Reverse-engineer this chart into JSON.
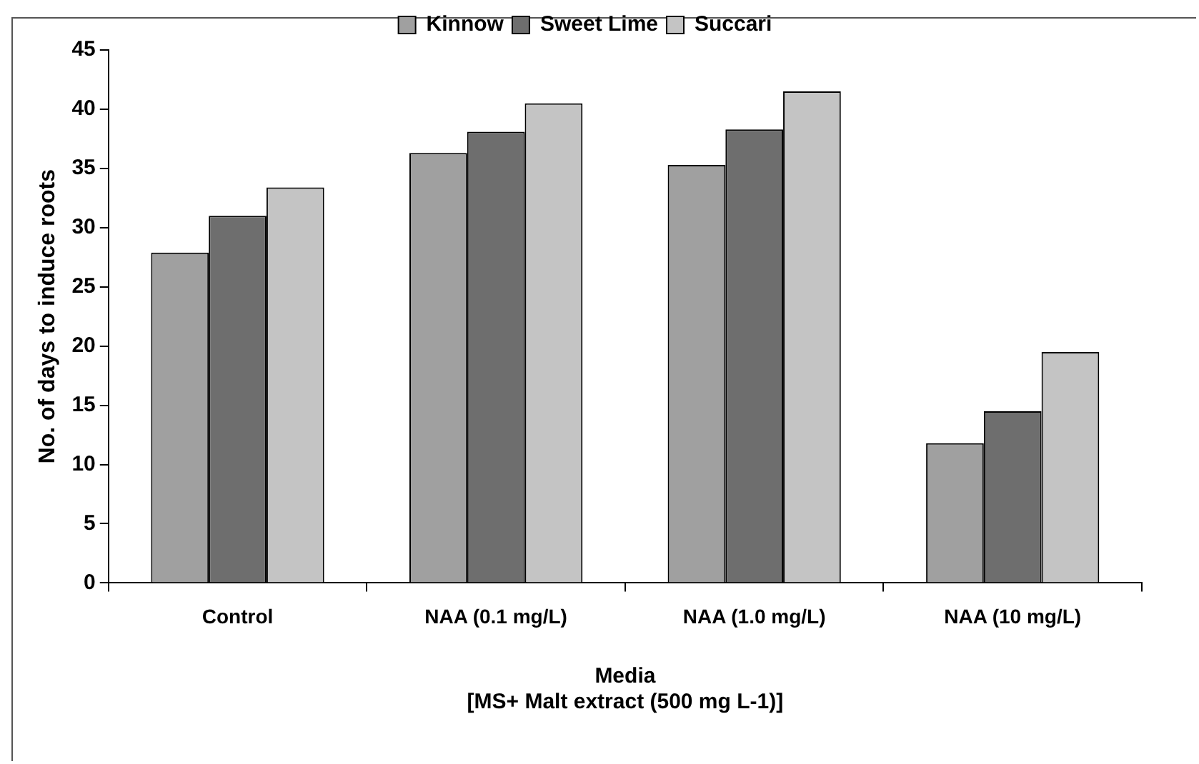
{
  "chart_data": {
    "type": "bar",
    "xlabel": "Media\n[MS+ Malt extract (500 mg L-1)]",
    "ylabel": "No. of days to induce roots",
    "categories": [
      "Control",
      "NAA (0.1 mg/L)",
      "NAA (1.0 mg/L)",
      "NAA (10 mg/L)"
    ],
    "series": [
      {
        "name": "Kinnow",
        "color": "#a0a0a0",
        "values": [
          27.9,
          36.3,
          35.3,
          11.8
        ]
      },
      {
        "name": "Sweet Lime",
        "color": "#6e6e6e",
        "values": [
          31.0,
          38.1,
          38.3,
          14.5
        ]
      },
      {
        "name": "Succari",
        "color": "#c4c4c4",
        "values": [
          33.4,
          40.5,
          41.5,
          19.5
        ]
      }
    ],
    "ylim": [
      0,
      45
    ],
    "yticks": [
      0,
      5,
      10,
      15,
      20,
      25,
      30,
      35,
      40,
      45
    ],
    "grid": false,
    "legend": "top"
  }
}
